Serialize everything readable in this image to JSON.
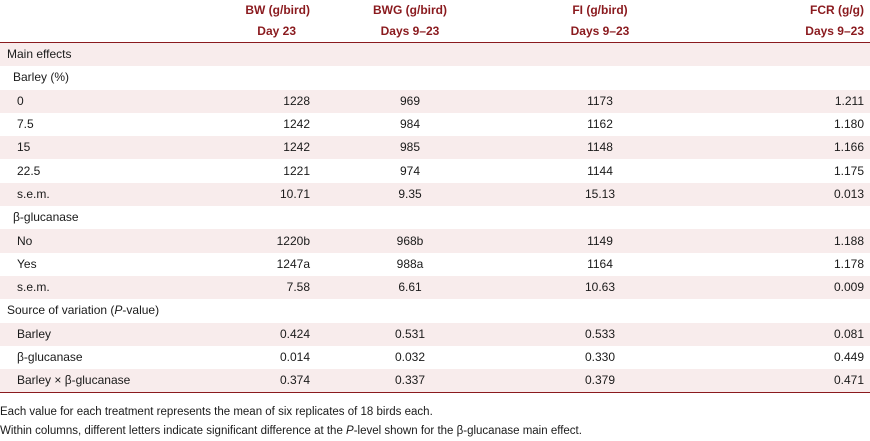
{
  "headers": {
    "bw": {
      "line1": "BW (g/bird)",
      "line2": "Day 23"
    },
    "bwg": {
      "line1": "BWG (g/bird)",
      "line2": "Days 9–23"
    },
    "fi": {
      "line1": "FI (g/bird)",
      "line2": "Days 9–23"
    },
    "fcr": {
      "line1": "FCR (g/g)",
      "line2": "Days 9–23"
    }
  },
  "sections": {
    "main_effects": "Main effects",
    "barley": "Barley (%)",
    "glucanase": "β-glucanase",
    "source_prefix": "Source of variation (",
    "source_p": "P",
    "source_suffix": "-value)"
  },
  "rows": {
    "barley": [
      {
        "label": "0",
        "bw": "1228",
        "bwg": "969",
        "fi": "1173",
        "fcr": "1.211"
      },
      {
        "label": "7.5",
        "bw": "1242",
        "bwg": "984",
        "fi": "1162",
        "fcr": "1.180"
      },
      {
        "label": "15",
        "bw": "1242",
        "bwg": "985",
        "fi": "1148",
        "fcr": "1.166"
      },
      {
        "label": "22.5",
        "bw": "1221",
        "bwg": "974",
        "fi": "1144",
        "fcr": "1.175"
      },
      {
        "label": "s.e.m.",
        "bw": "10.71",
        "bwg": "9.35",
        "fi": "15.13",
        "fcr": "0.013"
      }
    ],
    "glucanase": [
      {
        "label": "No",
        "bw": "1220b",
        "bwg": "968b",
        "fi": "1149",
        "fcr": "1.188"
      },
      {
        "label": "Yes",
        "bw": "1247a",
        "bwg": "988a",
        "fi": "1164",
        "fcr": "1.178"
      },
      {
        "label": "s.e.m.",
        "bw": "7.58",
        "bwg": "6.61",
        "fi": "10.63",
        "fcr": "0.009"
      }
    ],
    "source": [
      {
        "label": "Barley",
        "bw": "0.424",
        "bwg": "0.531",
        "fi": "0.533",
        "fcr": "0.081"
      },
      {
        "label": "β-glucanase",
        "bw": "0.014",
        "bwg": "0.032",
        "fi": "0.330",
        "fcr": "0.449"
      },
      {
        "label": "Barley × β-glucanase",
        "bw": "0.374",
        "bwg": "0.337",
        "fi": "0.379",
        "fcr": "0.471"
      }
    ]
  },
  "notes": {
    "note1": "Each value for each treatment represents the mean of six replicates of 18 birds each.",
    "note2_prefix": "Within columns, different letters indicate significant difference at the ",
    "note2_p": "P",
    "note2_suffix": "-level shown for the β-glucanase main effect."
  }
}
